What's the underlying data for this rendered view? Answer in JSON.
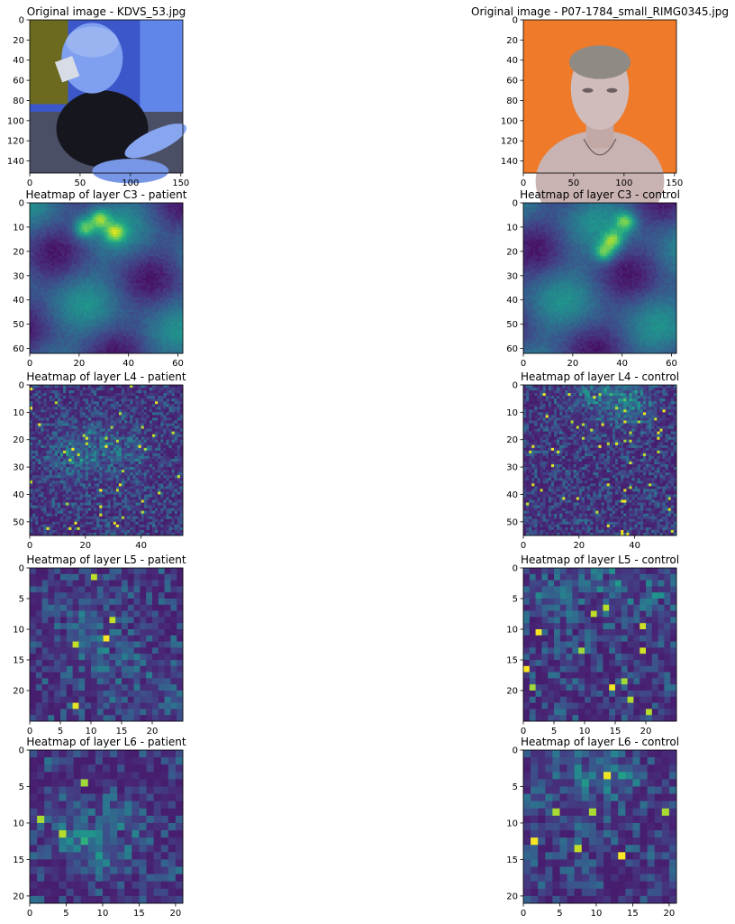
{
  "chart_data": [
    {
      "type": "image",
      "title": "Original image - KDVS_53.jpg",
      "image": "photo of a child (patient), blue-tinted colors",
      "xticks": [
        "0",
        "50",
        "100",
        "150"
      ],
      "yticks": [
        "0",
        "20",
        "40",
        "60",
        "80",
        "100",
        "120",
        "140"
      ],
      "xlim": [
        0,
        152
      ],
      "ylim": [
        152,
        0
      ]
    },
    {
      "type": "image",
      "title": "Original image - P07-1784_small_RIMG0345.jpg",
      "image": "photo of a boy (control) on orange background",
      "xticks": [
        "0",
        "50",
        "100",
        "150"
      ],
      "yticks": [
        "0",
        "20",
        "40",
        "60",
        "80",
        "100",
        "120",
        "140"
      ],
      "xlim": [
        0,
        152
      ],
      "ylim": [
        152,
        0
      ]
    },
    {
      "type": "heatmap",
      "title": "Heatmap of layer C3 - patient",
      "colormap": "viridis",
      "grid_size": 62,
      "xticks": [
        "0",
        "20",
        "40",
        "60"
      ],
      "yticks": [
        "0",
        "10",
        "20",
        "30",
        "40",
        "50",
        "60"
      ],
      "xlim": [
        0,
        62
      ],
      "ylim": [
        62,
        0
      ]
    },
    {
      "type": "heatmap",
      "title": "Heatmap of layer C3 - control",
      "colormap": "viridis",
      "grid_size": 62,
      "xticks": [
        "0",
        "20",
        "40",
        "60"
      ],
      "yticks": [
        "0",
        "10",
        "20",
        "30",
        "40",
        "50",
        "60"
      ],
      "xlim": [
        0,
        62
      ],
      "ylim": [
        62,
        0
      ]
    },
    {
      "type": "heatmap",
      "title": "Heatmap of layer L4 - patient",
      "colormap": "viridis",
      "grid_size": 55,
      "xticks": [
        "0",
        "20",
        "40"
      ],
      "yticks": [
        "0",
        "10",
        "20",
        "30",
        "40",
        "50"
      ],
      "xlim": [
        0,
        55
      ],
      "ylim": [
        55,
        0
      ]
    },
    {
      "type": "heatmap",
      "title": "Heatmap of layer L4 - control",
      "colormap": "viridis",
      "grid_size": 55,
      "xticks": [
        "0",
        "20",
        "40"
      ],
      "yticks": [
        "0",
        "10",
        "20",
        "30",
        "40",
        "50"
      ],
      "xlim": [
        0,
        55
      ],
      "ylim": [
        55,
        0
      ]
    },
    {
      "type": "heatmap",
      "title": "Heatmap of layer L5 - patient",
      "colormap": "viridis",
      "grid_size": 25,
      "xticks": [
        "0",
        "5",
        "10",
        "15",
        "20"
      ],
      "yticks": [
        "0",
        "5",
        "10",
        "15",
        "20"
      ],
      "xlim": [
        0,
        25
      ],
      "ylim": [
        25,
        0
      ]
    },
    {
      "type": "heatmap",
      "title": "Heatmap of layer L5 - control",
      "colormap": "viridis",
      "grid_size": 25,
      "xticks": [
        "0",
        "5",
        "10",
        "15",
        "20"
      ],
      "yticks": [
        "0",
        "5",
        "10",
        "15",
        "20"
      ],
      "xlim": [
        0,
        25
      ],
      "ylim": [
        25,
        0
      ]
    },
    {
      "type": "heatmap",
      "title": "Heatmap of layer L6 - patient",
      "colormap": "viridis",
      "grid_size": 21,
      "xticks": [
        "0",
        "5",
        "10",
        "15",
        "20"
      ],
      "yticks": [
        "0",
        "5",
        "10",
        "15",
        "20"
      ],
      "xlim": [
        0,
        21
      ],
      "ylim": [
        21,
        0
      ]
    },
    {
      "type": "heatmap",
      "title": "Heatmap of layer L6 - control",
      "colormap": "viridis",
      "grid_size": 21,
      "xticks": [
        "0",
        "5",
        "10",
        "15",
        "20"
      ],
      "yticks": [
        "0",
        "5",
        "10",
        "15",
        "20"
      ],
      "xlim": [
        0,
        21
      ],
      "ylim": [
        21,
        0
      ]
    }
  ]
}
